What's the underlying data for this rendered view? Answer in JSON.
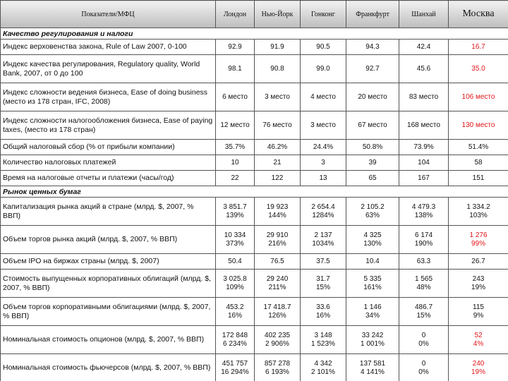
{
  "header": {
    "columns": [
      "Показатели/МФЦ",
      "Лондон",
      "Нью-Йорк",
      "Гонконг",
      "Франкфурт",
      "Шанхай",
      "Москва"
    ]
  },
  "highlight_color": "#e3151a",
  "sections": [
    {
      "title": "Качество регулирования и налоги",
      "rows": [
        {
          "label": "Индекс верховенства закона, Rule of Law 2007, 0-100",
          "cells": [
            [
              "92.9"
            ],
            [
              "91.9"
            ],
            [
              "90.5"
            ],
            [
              "94.3"
            ],
            [
              "42.4"
            ],
            [
              "16.7"
            ]
          ],
          "highlight": true
        },
        {
          "label": "Индекс качества регулирования, Regulatory quality, World Bank, 2007, от 0 до 100",
          "cells": [
            [
              "98.1"
            ],
            [
              "90.8"
            ],
            [
              "99.0"
            ],
            [
              "92.7"
            ],
            [
              "45.6"
            ],
            [
              "35.0"
            ]
          ],
          "highlight": true
        },
        {
          "label": "Индекс сложности ведения бизнеса, Ease of doing business (место из 178 стран, IFC, 2008)",
          "cells": [
            [
              "6 место"
            ],
            [
              "3 место"
            ],
            [
              "4 место"
            ],
            [
              "20 место"
            ],
            [
              "83 место"
            ],
            [
              "106 место"
            ]
          ],
          "highlight": true
        },
        {
          "label": "Индекс сложности налогообложения бизнеса, Ease of paying taxes, (место из 178 стран)",
          "cells": [
            [
              "12 место"
            ],
            [
              "76 место"
            ],
            [
              "3 место"
            ],
            [
              "67 место"
            ],
            [
              "168 место"
            ],
            [
              "130 место"
            ]
          ],
          "highlight": true
        },
        {
          "label": "Общий налоговый сбор (% от прибыли компании)",
          "cells": [
            [
              "35.7%"
            ],
            [
              "46.2%"
            ],
            [
              "24.4%"
            ],
            [
              "50.8%"
            ],
            [
              "73.9%"
            ],
            [
              "51.4%"
            ]
          ],
          "highlight": false
        },
        {
          "label": "Количество налоговых платежей",
          "cells": [
            [
              "10"
            ],
            [
              "21"
            ],
            [
              "3"
            ],
            [
              "39"
            ],
            [
              "104"
            ],
            [
              "58"
            ]
          ],
          "highlight": false
        },
        {
          "label": "Время на налоговые отчеты и платежи (часы/год)",
          "cells": [
            [
              "22"
            ],
            [
              "122"
            ],
            [
              "13"
            ],
            [
              "65"
            ],
            [
              "167"
            ],
            [
              "151"
            ]
          ],
          "highlight": false
        }
      ]
    },
    {
      "title": "Рынок ценных бумаг",
      "rows": [
        {
          "label": "Капитализация рынка акций в стране (млрд. $, 2007, % ВВП)",
          "cells": [
            [
              "3 851.7",
              "139%"
            ],
            [
              "19 923",
              "144%"
            ],
            [
              "2 654.4",
              "1284%"
            ],
            [
              "2 105.2",
              "63%"
            ],
            [
              "4 479.3",
              "138%"
            ],
            [
              "1 334.2",
              "103%"
            ]
          ],
          "highlight": false
        },
        {
          "label": "Объем торгов рынка акций (млрд. $, 2007, % ВВП)",
          "cells": [
            [
              "10 334",
              "373%"
            ],
            [
              "29 910",
              "216%"
            ],
            [
              "2 137",
              "1034%"
            ],
            [
              "4 325",
              "130%"
            ],
            [
              "6 174",
              "190%"
            ],
            [
              "1 276",
              "99%"
            ]
          ],
          "highlight": true
        },
        {
          "label": "Объем IPO на биржах страны (млрд. $, 2007)",
          "cells": [
            [
              "50.4"
            ],
            [
              "76.5"
            ],
            [
              "37.5"
            ],
            [
              "10.4"
            ],
            [
              "63.3"
            ],
            [
              "26.7"
            ]
          ],
          "highlight": false
        },
        {
          "label": "Стоимость выпущенных корпоративных облигаций (млрд. $, 2007, % ВВП)",
          "cells": [
            [
              "3 025.8",
              "109%"
            ],
            [
              "29 240",
              "211%"
            ],
            [
              "31.7",
              "15%"
            ],
            [
              "5 335",
              "161%"
            ],
            [
              "1 565",
              "48%"
            ],
            [
              "243",
              "19%"
            ]
          ],
          "highlight": false
        },
        {
          "label": "Объем торгов корпоративными облигациями (млрд. $, 2007, % ВВП)",
          "cells": [
            [
              "453.2",
              "16%"
            ],
            [
              "17 418.7",
              "126%"
            ],
            [
              "33.6",
              "16%"
            ],
            [
              "1 146",
              "34%"
            ],
            [
              "486.7",
              "15%"
            ],
            [
              "115",
              "9%"
            ]
          ],
          "highlight": false
        },
        {
          "label": "Номинальная стоимость опционов (млрд. $, 2007, % ВВП)",
          "cells": [
            [
              "172 848",
              "6 234%"
            ],
            [
              "402 235",
              "2 906%"
            ],
            [
              "3 148",
              "1 523%"
            ],
            [
              "33 242",
              "1 001%"
            ],
            [
              "0",
              "0%"
            ],
            [
              "52",
              "4%"
            ]
          ],
          "highlight": true
        },
        {
          "label": "Номинальная стоимость фьючерсов (млрд. $, 2007, % ВВП)",
          "cells": [
            [
              "451 757",
              "16 294%"
            ],
            [
              "857 278",
              "6 193%"
            ],
            [
              "4 342",
              "2 101%"
            ],
            [
              "137 581",
              "4 141%"
            ],
            [
              "0",
              "0%"
            ],
            [
              "240",
              "19%"
            ]
          ],
          "highlight": true
        }
      ]
    }
  ]
}
